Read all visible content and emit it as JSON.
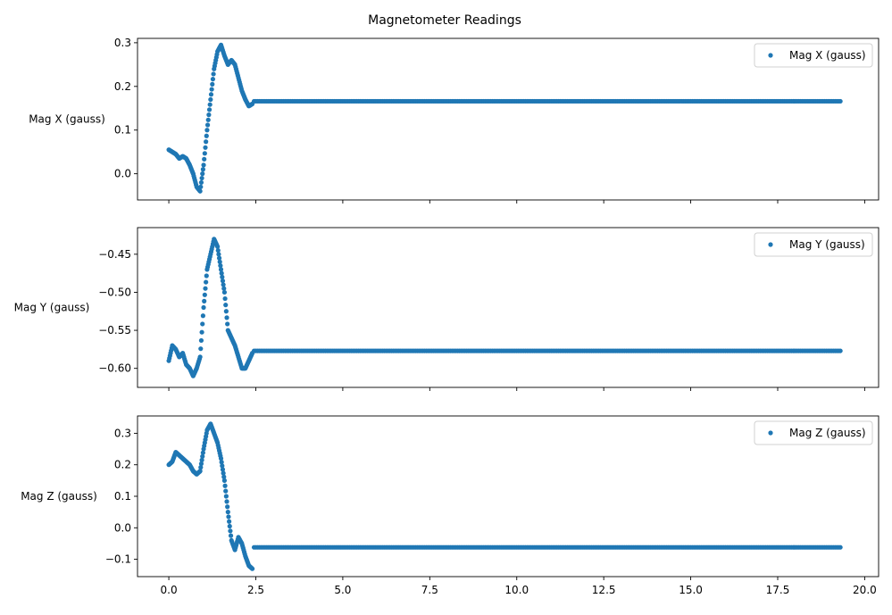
{
  "chart_data": {
    "type": "scatter",
    "title": "Magnetometer Readings",
    "marker_color": "#1f77b4",
    "xlim": [
      -0.9,
      20.4
    ],
    "xticks": [
      0.0,
      2.5,
      5.0,
      7.5,
      10.0,
      12.5,
      15.0,
      17.5,
      20.0
    ],
    "xtick_labels": [
      "0.0",
      "2.5",
      "5.0",
      "7.5",
      "10.0",
      "12.5",
      "15.0",
      "17.5",
      "20.0"
    ],
    "x_max": 19.35,
    "legend_placement": "top-right",
    "grid": false,
    "panels": [
      {
        "id": "mag-x",
        "ylabel": "Mag X (gauss)",
        "legend": "Mag X (gauss)",
        "ylim": [
          -0.06,
          0.31
        ],
        "yticks": [
          0.0,
          0.1,
          0.2,
          0.3
        ],
        "ytick_labels": [
          "0.0",
          "0.1",
          "0.2",
          "0.3"
        ],
        "steady_value": 0.166,
        "series": {
          "x": [
            0.0,
            0.1,
            0.2,
            0.3,
            0.4,
            0.5,
            0.6,
            0.7,
            0.8,
            0.9,
            1.0,
            1.1,
            1.2,
            1.3,
            1.4,
            1.5,
            1.6,
            1.7,
            1.8,
            1.9,
            2.0,
            2.1,
            2.2,
            2.3,
            2.4
          ],
          "y": [
            0.055,
            0.05,
            0.045,
            0.035,
            0.04,
            0.035,
            0.02,
            0.0,
            -0.03,
            -0.04,
            0.02,
            0.1,
            0.17,
            0.24,
            0.28,
            0.295,
            0.27,
            0.25,
            0.26,
            0.25,
            0.22,
            0.19,
            0.17,
            0.155,
            0.16
          ]
        }
      },
      {
        "id": "mag-y",
        "ylabel": "Mag Y (gauss)",
        "legend": "Mag Y (gauss)",
        "ylim": [
          -0.625,
          -0.415
        ],
        "yticks": [
          -0.6,
          -0.55,
          -0.5,
          -0.45
        ],
        "ytick_labels": [
          "−0.60",
          "−0.55",
          "−0.50",
          "−0.45"
        ],
        "steady_value": -0.577,
        "series": {
          "x": [
            0.0,
            0.1,
            0.2,
            0.3,
            0.4,
            0.5,
            0.6,
            0.7,
            0.8,
            0.9,
            1.0,
            1.1,
            1.2,
            1.3,
            1.4,
            1.5,
            1.6,
            1.7,
            1.8,
            1.9,
            2.0,
            2.1,
            2.2,
            2.3,
            2.4
          ],
          "y": [
            -0.59,
            -0.57,
            -0.575,
            -0.585,
            -0.58,
            -0.595,
            -0.6,
            -0.61,
            -0.6,
            -0.585,
            -0.52,
            -0.47,
            -0.45,
            -0.43,
            -0.44,
            -0.47,
            -0.5,
            -0.55,
            -0.56,
            -0.57,
            -0.585,
            -0.6,
            -0.6,
            -0.59,
            -0.58
          ]
        }
      },
      {
        "id": "mag-z",
        "ylabel": "Mag Z (gauss)",
        "legend": "Mag Z (gauss)",
        "ylim": [
          -0.155,
          0.355
        ],
        "yticks": [
          -0.1,
          0.0,
          0.1,
          0.2,
          0.3
        ],
        "ytick_labels": [
          "−0.1",
          "0.0",
          "0.1",
          "0.2",
          "0.3"
        ],
        "steady_value": -0.062,
        "series": {
          "x": [
            0.0,
            0.1,
            0.2,
            0.3,
            0.4,
            0.5,
            0.6,
            0.7,
            0.8,
            0.9,
            1.0,
            1.1,
            1.2,
            1.3,
            1.4,
            1.5,
            1.6,
            1.7,
            1.8,
            1.9,
            2.0,
            2.1,
            2.2,
            2.3,
            2.4
          ],
          "y": [
            0.2,
            0.21,
            0.24,
            0.23,
            0.22,
            0.21,
            0.2,
            0.18,
            0.17,
            0.18,
            0.25,
            0.31,
            0.33,
            0.3,
            0.27,
            0.22,
            0.15,
            0.05,
            -0.04,
            -0.07,
            -0.03,
            -0.05,
            -0.09,
            -0.12,
            -0.13
          ]
        }
      }
    ]
  }
}
